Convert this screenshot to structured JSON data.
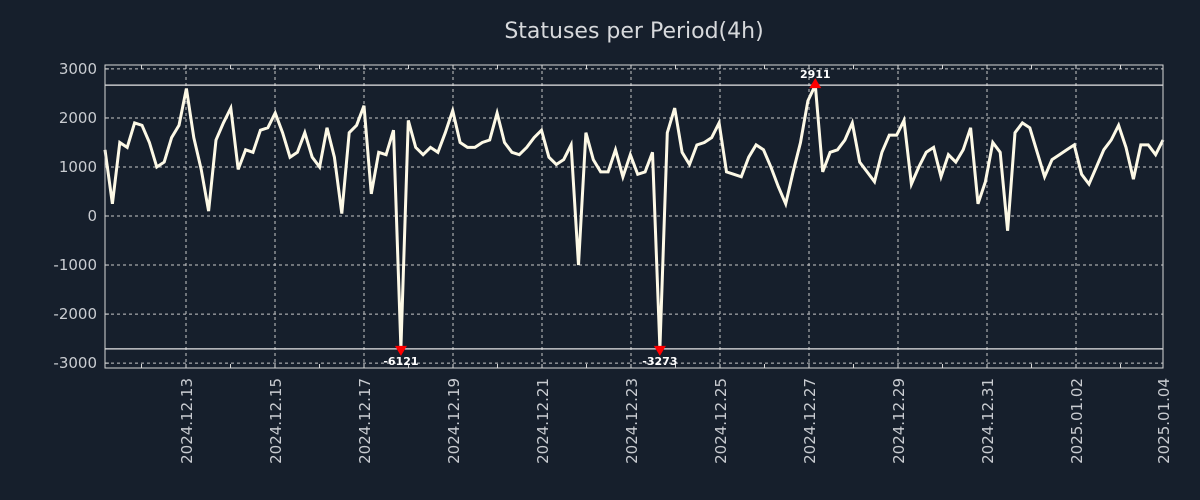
{
  "chart_data": {
    "type": "line",
    "title": "Statuses per Period(4h)",
    "xlabel": "",
    "ylabel": "",
    "ylim": [
      -3100,
      3080
    ],
    "yticks": [
      3000,
      2000,
      1000,
      0,
      -1000,
      -2000,
      -3000
    ],
    "ytick_labels": [
      "3000",
      "2000",
      "1000",
      "0",
      "-1000",
      "-2000",
      "-3000"
    ],
    "xtick_labels": [
      "2024.12.13",
      "2024.12.15",
      "2024.12.17",
      "2024.12.19",
      "2024.12.21",
      "2024.12.23",
      "2024.12.25",
      "2024.12.27",
      "2024.12.29",
      "2024.12.31",
      "2025.01.02",
      "2025.01.04"
    ],
    "period": "4h",
    "grid": true,
    "limit_lines": [
      2670,
      -2710
    ],
    "colors": {
      "background": "#161f2c",
      "line": "#fdf9e6",
      "marker": "#ff0000",
      "grid": "#c8c8c8",
      "text": "#c9ccd1"
    },
    "series": [
      {
        "name": "Statuses per Period",
        "values": [
          1350,
          250,
          1500,
          1400,
          1900,
          1850,
          1500,
          1000,
          1100,
          1600,
          1850,
          2600,
          1600,
          950,
          100,
          1550,
          1900,
          2200,
          950,
          1350,
          1300,
          1750,
          1800,
          2100,
          1700,
          1200,
          1300,
          1700,
          1200,
          1000,
          1800,
          1200,
          50,
          1700,
          1850,
          2250,
          450,
          1300,
          1250,
          1750,
          -2700,
          1950,
          1400,
          1250,
          1400,
          1300,
          1700,
          2150,
          1500,
          1400,
          1400,
          1500,
          1550,
          2100,
          1500,
          1300,
          1250,
          1400,
          1600,
          1750,
          1200,
          1050,
          1150,
          1450,
          -1000,
          1700,
          1150,
          900,
          900,
          1350,
          800,
          1250,
          850,
          900,
          1300,
          -2700,
          1700,
          2200,
          1300,
          1050,
          1450,
          1500,
          1600,
          1900,
          900,
          850,
          800,
          1200,
          1450,
          1350,
          1000,
          600,
          250,
          900,
          1500,
          2350,
          2670,
          900,
          1300,
          1350,
          1550,
          1900,
          1100,
          900,
          700,
          1300,
          1650,
          1650,
          1950,
          650,
          1000,
          1300,
          1400,
          800,
          1250,
          1100,
          1350,
          1800,
          250,
          700,
          1500,
          1300,
          -300,
          1700,
          1900,
          1800,
          1300,
          800,
          1150,
          1250,
          1350,
          1450,
          850,
          650,
          1000,
          1350,
          1550,
          1850,
          1400,
          750,
          1450,
          1450,
          1250,
          1550
        ]
      }
    ],
    "annotations": [
      {
        "label": "-6121",
        "index": 40,
        "kind": "min",
        "plotted_value": -2710
      },
      {
        "label": "-3273",
        "index": 75,
        "kind": "min",
        "plotted_value": -2710
      },
      {
        "label": "2911",
        "index": 96,
        "kind": "max",
        "plotted_value": 2670
      }
    ]
  }
}
